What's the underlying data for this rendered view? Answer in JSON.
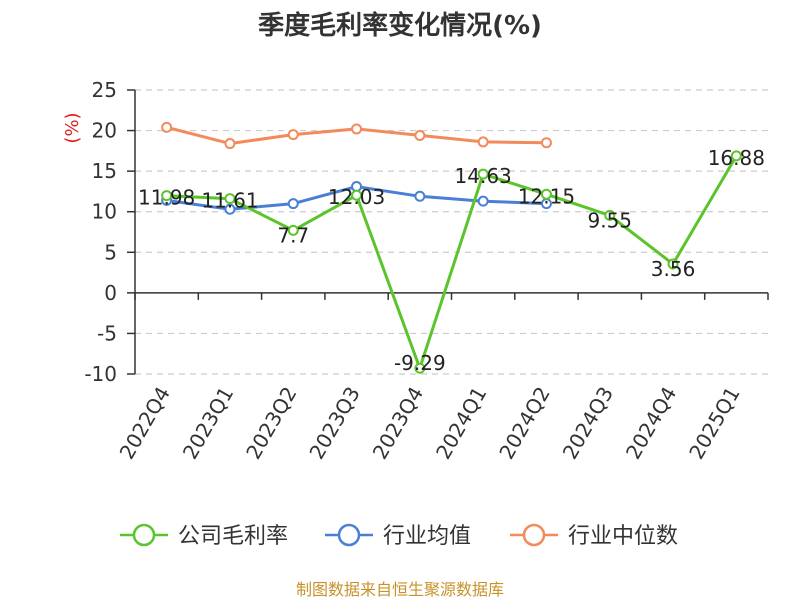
{
  "chart_data": {
    "type": "line",
    "title": "季度毛利率变化情况(%)",
    "ylabel": "(%)",
    "xlabel": "",
    "ylim": [
      -10,
      25
    ],
    "yticks": [
      -10,
      -5,
      0,
      5,
      10,
      15,
      20,
      25
    ],
    "grid": true,
    "legend_position": "bottom",
    "categories": [
      "2022Q4",
      "2023Q1",
      "2023Q2",
      "2023Q3",
      "2023Q4",
      "2024Q1",
      "2024Q2",
      "2024Q3",
      "2024Q4",
      "2025Q1"
    ],
    "series": [
      {
        "name": "公司毛利率",
        "color": "#5cc42b",
        "values": [
          11.98,
          11.61,
          7.7,
          12.03,
          -9.29,
          14.63,
          12.15,
          9.55,
          3.56,
          16.88
        ],
        "labels": [
          "11.98",
          "11.61",
          "7.7",
          "12.03",
          "-9.29",
          "14.63",
          "12.15",
          "9.55",
          "3.56",
          "16.88"
        ]
      },
      {
        "name": "行业均值",
        "color": "#4a7fd6",
        "values": [
          11.4,
          10.3,
          11.0,
          13.1,
          11.9,
          11.3,
          11.0,
          null,
          null,
          null
        ]
      },
      {
        "name": "行业中位数",
        "color": "#f38a5a",
        "values": [
          20.4,
          18.4,
          19.5,
          20.2,
          19.4,
          18.6,
          18.5,
          null,
          null,
          null
        ]
      }
    ]
  },
  "footer": {
    "source": "制图数据来自恒生聚源数据库"
  }
}
